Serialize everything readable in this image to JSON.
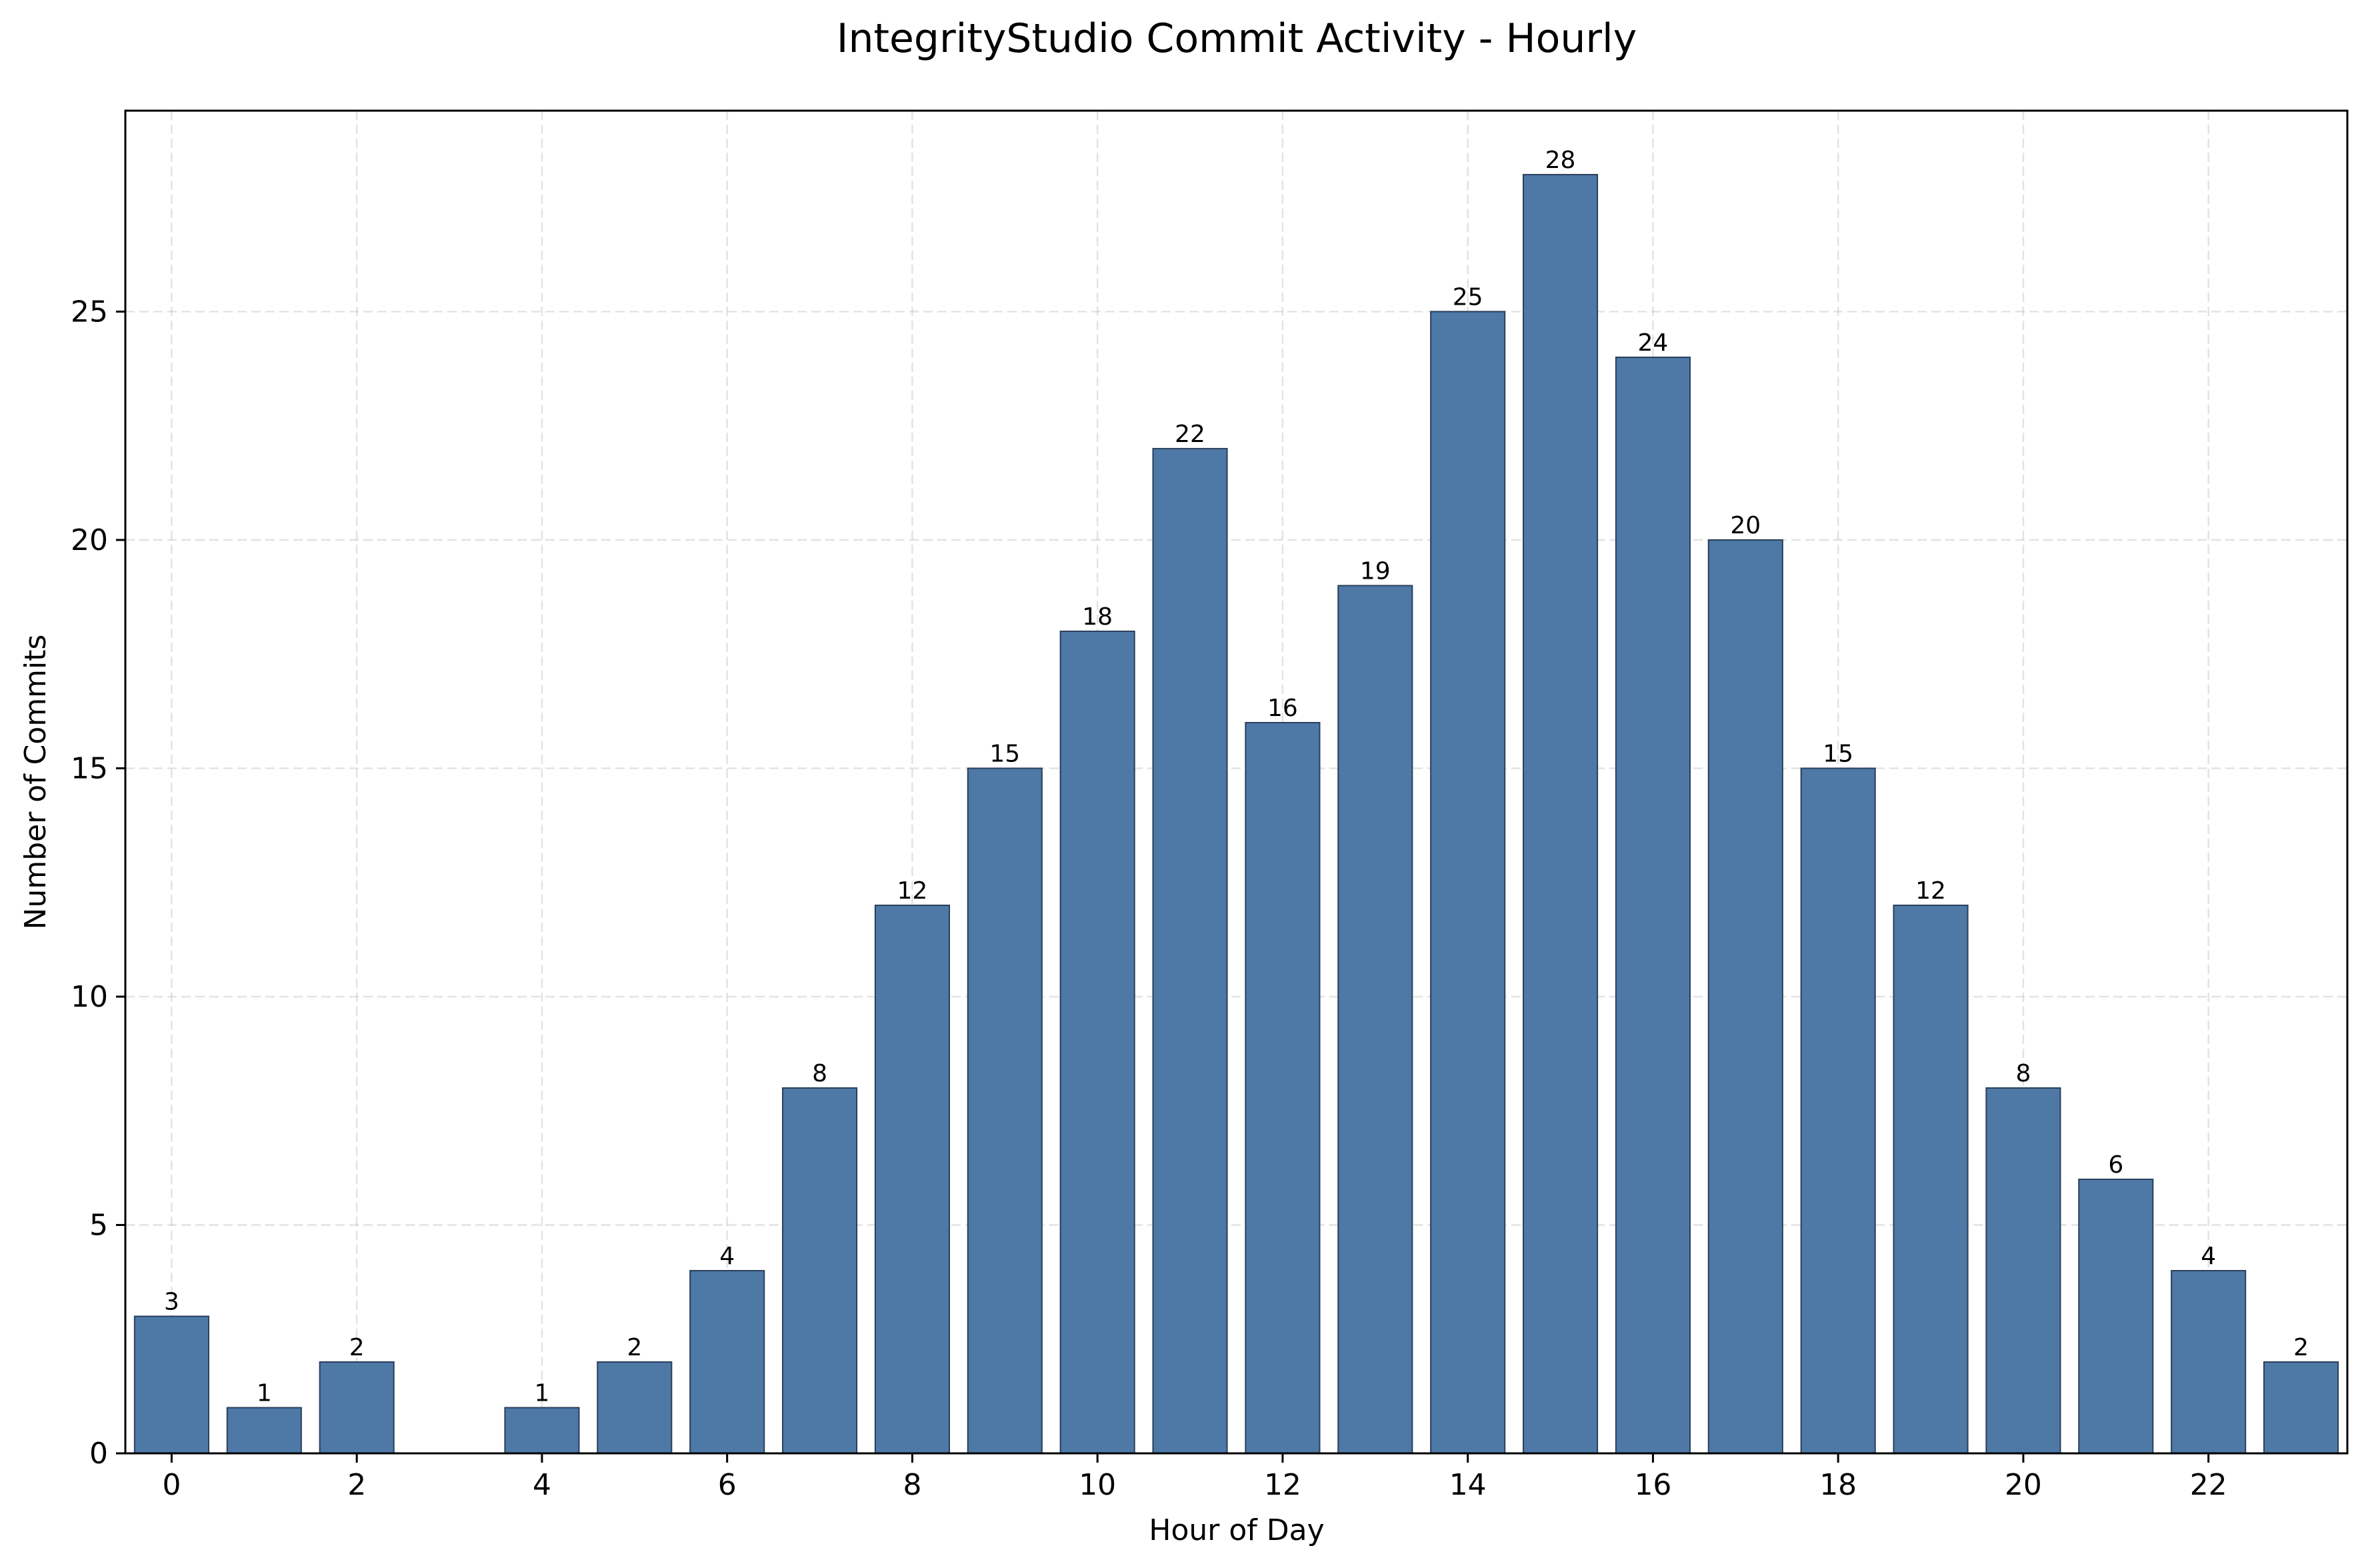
{
  "chart_data": {
    "type": "bar",
    "title": "IntegrityStudio Commit Activity - Hourly",
    "xlabel": "Hour of Day",
    "ylabel": "Number of Commits",
    "x": [
      0,
      1,
      2,
      4,
      5,
      6,
      7,
      8,
      9,
      10,
      11,
      12,
      13,
      14,
      15,
      16,
      17,
      18,
      19,
      20,
      21,
      22,
      23
    ],
    "values": [
      3,
      1,
      2,
      1,
      2,
      4,
      8,
      12,
      15,
      18,
      22,
      16,
      19,
      25,
      28,
      24,
      20,
      15,
      12,
      8,
      6,
      4,
      2
    ],
    "xlim": [
      -0.5,
      23.5
    ],
    "ylim": [
      0,
      29.4
    ],
    "xticks": [
      0,
      2,
      4,
      6,
      8,
      10,
      12,
      14,
      16,
      18,
      20,
      22
    ],
    "yticks": [
      0,
      5,
      10,
      15,
      20,
      25
    ],
    "grid": true,
    "bar_color": "#4e79a7",
    "edge_color": "#2a3f5a"
  }
}
